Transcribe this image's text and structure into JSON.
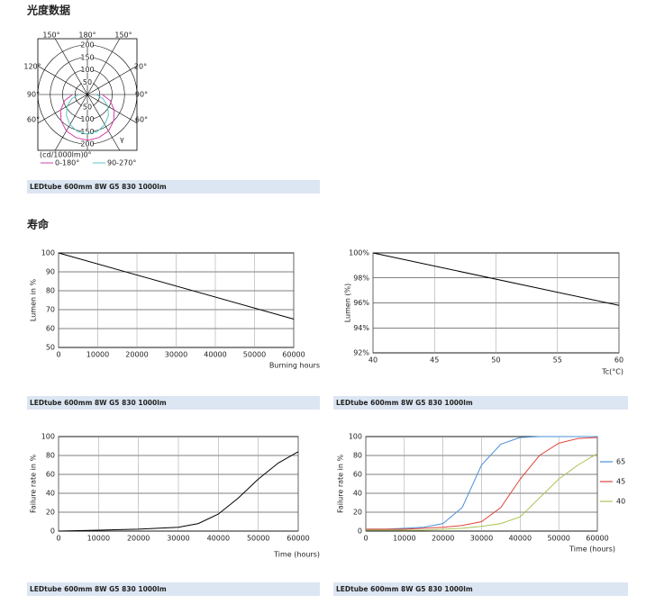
{
  "headings": [
    "光度数据",
    "寿命"
  ],
  "chart_data": [
    {
      "type": "polar",
      "rlim": [
        0,
        200
      ],
      "rticks": [
        50,
        100,
        150,
        200
      ],
      "unit_label": "(cd/1000lm)",
      "bottom_label": "0°",
      "gamma_label": "γ",
      "angle_labels": [
        "150°",
        "180°",
        "150°",
        "120°",
        "20°",
        "90°",
        "90°",
        "60°",
        "60°"
      ],
      "theta": [
        0,
        15,
        30,
        45,
        60,
        75,
        90
      ],
      "series": [
        {
          "name": "0-180°",
          "color": "#d23fa8",
          "values": [
            185,
            180,
            170,
            150,
            125,
            95,
            60
          ]
        },
        {
          "name": "90-270°",
          "color": "#5cc7c9",
          "values": [
            160,
            155,
            140,
            120,
            95,
            65,
            35
          ]
        }
      ],
      "caption": "LEDtube 600mm 8W G5 830 1000lm"
    },
    {
      "type": "line",
      "ylabel": "Lumen in %",
      "xlabel": "Burning hours",
      "x": [
        0,
        60000
      ],
      "xlim": [
        0,
        60000
      ],
      "xticks": [
        0,
        10000,
        20000,
        30000,
        40000,
        50000,
        60000
      ],
      "ylim": [
        50,
        100
      ],
      "yticks": [
        50,
        60,
        70,
        80,
        90,
        100
      ],
      "series": [
        {
          "color": "#000000",
          "values": [
            100,
            65
          ]
        }
      ],
      "caption": "LEDtube 600mm 8W G5 830 1000lm"
    },
    {
      "type": "line",
      "ylabel": "Lumen (%)",
      "xlabel": "Tc(°C)",
      "x": [
        40,
        60
      ],
      "xlim": [
        40,
        60
      ],
      "xticks": [
        40,
        45,
        50,
        55,
        60
      ],
      "ylim": [
        92,
        100
      ],
      "yticks": [
        {
          "value": 92,
          "label": "92%"
        },
        {
          "value": 94,
          "label": "94%"
        },
        {
          "value": 96,
          "label": "96%"
        },
        {
          "value": 98,
          "label": "98%"
        },
        {
          "value": 100,
          "label": "100%"
        }
      ],
      "series": [
        {
          "color": "#000000",
          "values": [
            100,
            95.8
          ]
        }
      ],
      "caption": "LEDtube 600mm 8W G5 830 1000lm"
    },
    {
      "type": "line",
      "ylabel": "Failure rate in %",
      "xlabel": "Time (hours)",
      "x": [
        0,
        10000,
        20000,
        30000,
        35000,
        40000,
        45000,
        50000,
        55000,
        60000
      ],
      "xlim": [
        0,
        60000
      ],
      "xticks": [
        0,
        10000,
        20000,
        30000,
        40000,
        50000,
        60000
      ],
      "ylim": [
        0,
        100
      ],
      "yticks": [
        0,
        20,
        40,
        60,
        80,
        100
      ],
      "series": [
        {
          "color": "#000000",
          "values": [
            0,
            1,
            2,
            4,
            8,
            18,
            35,
            55,
            72,
            84
          ]
        }
      ],
      "caption": "LEDtube 600mm 8W G5 830 1000lm"
    },
    {
      "type": "line",
      "ylabel": "Failure rate in %",
      "xlabel": "Time (hours)",
      "x": [
        0,
        5000,
        10000,
        15000,
        20000,
        25000,
        30000,
        35000,
        40000,
        45000,
        50000,
        55000,
        60000
      ],
      "xlim": [
        0,
        60000
      ],
      "xticks": [
        0,
        10000,
        20000,
        30000,
        40000,
        50000,
        60000
      ],
      "ylim": [
        0,
        100
      ],
      "yticks": [
        0,
        20,
        40,
        60,
        80,
        100
      ],
      "series": [
        {
          "name": "65",
          "color": "#4a90d9",
          "values": [
            2,
            2,
            3,
            4,
            8,
            25,
            70,
            92,
            99,
            100,
            100,
            100,
            100
          ]
        },
        {
          "name": "45",
          "color": "#e0443a",
          "values": [
            2,
            2,
            2,
            3,
            4,
            6,
            10,
            25,
            55,
            80,
            93,
            98,
            99
          ]
        },
        {
          "name": "40",
          "color": "#a9c456",
          "values": [
            1,
            1,
            1,
            1,
            2,
            3,
            5,
            8,
            15,
            35,
            55,
            70,
            82
          ]
        }
      ],
      "caption": "LEDtube 600mm 8W G5 830 1000lm"
    }
  ]
}
